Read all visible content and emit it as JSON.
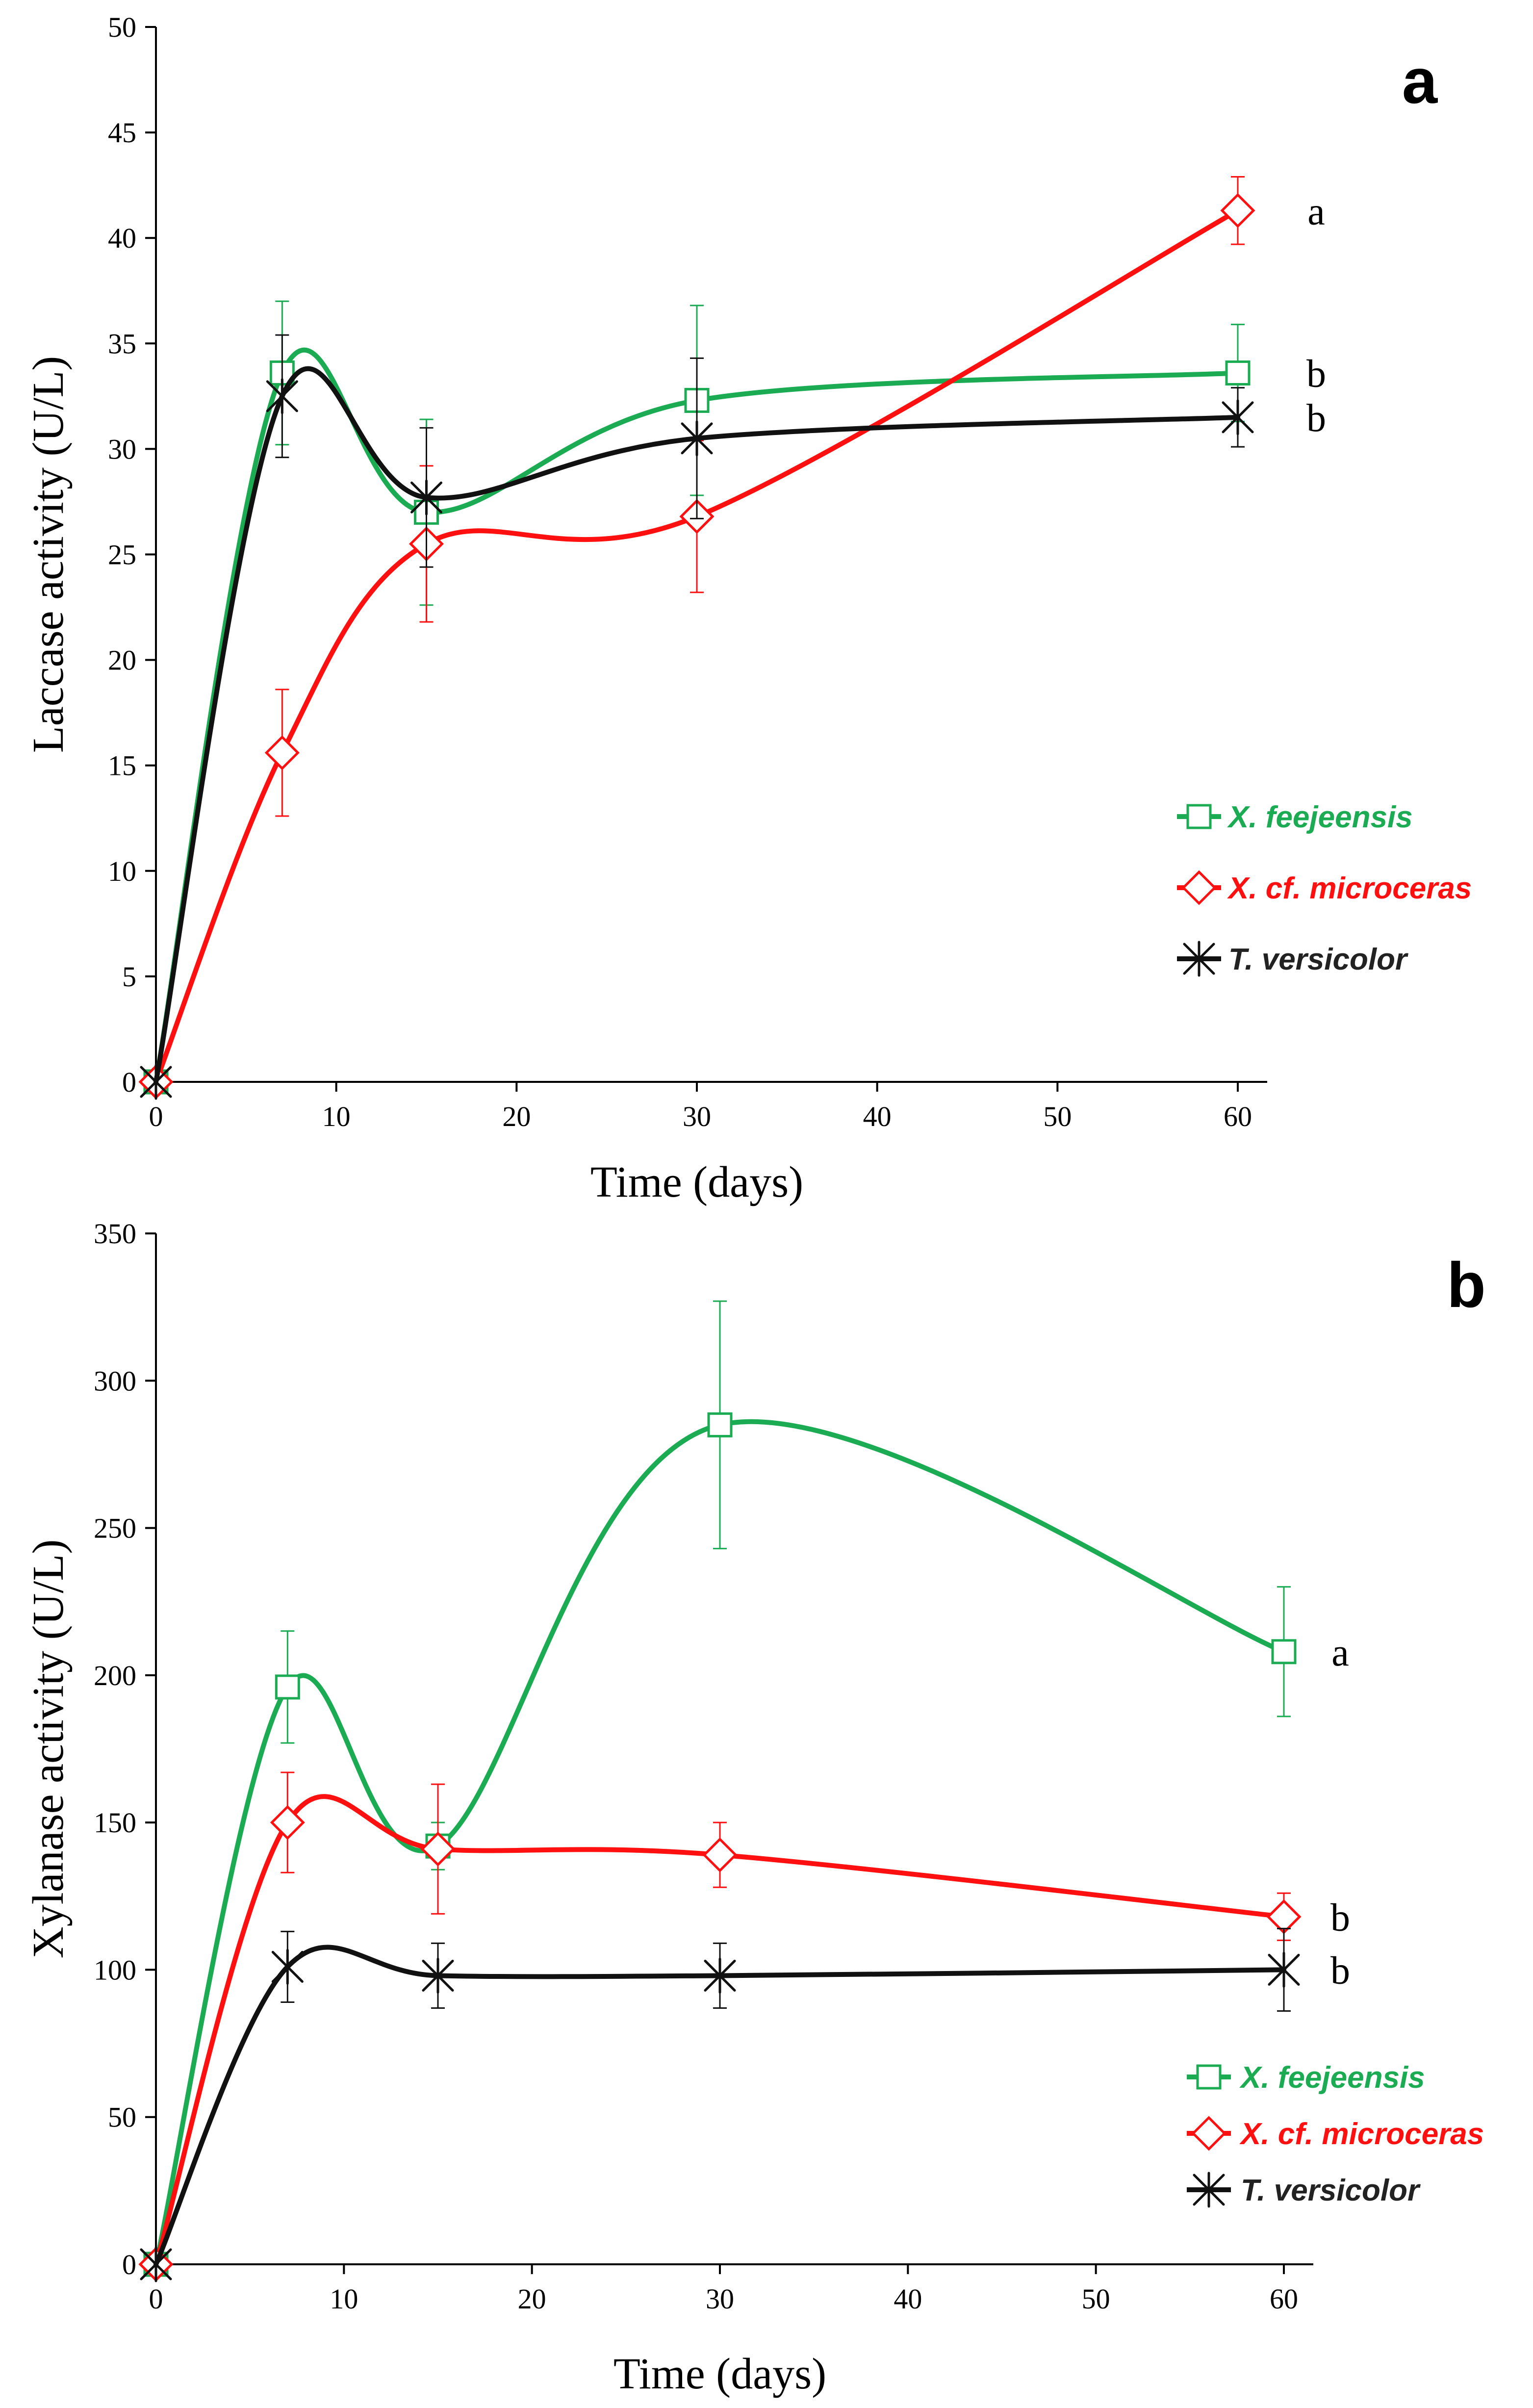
{
  "chart_data": [
    {
      "type": "line",
      "panel_label": "a",
      "xlabel": "Time (days)",
      "ylabel": "Laccase activity (U/L)",
      "x_ticks": [
        "0",
        "10",
        "20",
        "30",
        "40",
        "50",
        "60"
      ],
      "y_ticks": [
        "0",
        "5",
        "10",
        "15",
        "20",
        "25",
        "30",
        "35",
        "40",
        "45",
        "50"
      ],
      "xlim": [
        0,
        60
      ],
      "ylim": [
        0,
        50
      ],
      "grid": false,
      "legend_position": "middle-right",
      "x": [
        0,
        7,
        15,
        30,
        60
      ],
      "series": [
        {
          "name": "X. feejeensis",
          "color": "#1aab53",
          "marker": "square",
          "values": [
            0,
            33.6,
            27.0,
            32.3,
            33.6
          ],
          "errors": [
            0,
            3.4,
            4.4,
            4.5,
            2.3
          ],
          "significance": "b"
        },
        {
          "name": "X. cf. microceras",
          "color": "#ff1010",
          "marker": "diamond",
          "values": [
            0,
            15.6,
            25.5,
            26.8,
            41.3
          ],
          "errors": [
            0,
            3.0,
            3.7,
            3.6,
            1.6
          ],
          "significance": "a"
        },
        {
          "name": "T. versicolor",
          "color": "#111111",
          "marker": "asterisk",
          "values": [
            0,
            32.5,
            27.7,
            30.5,
            31.5
          ],
          "errors": [
            0,
            2.9,
            3.3,
            3.8,
            1.4
          ],
          "significance": "b"
        }
      ]
    },
    {
      "type": "line",
      "panel_label": "b",
      "xlabel": "Time (days)",
      "ylabel": "Xylanase activity (U/L)",
      "x_ticks": [
        "0",
        "10",
        "20",
        "30",
        "40",
        "50",
        "60"
      ],
      "y_ticks": [
        "0",
        "50",
        "100",
        "150",
        "200",
        "250",
        "300",
        "350"
      ],
      "xlim": [
        0,
        60
      ],
      "ylim": [
        0,
        350
      ],
      "grid": false,
      "legend_position": "bottom-right",
      "x": [
        0,
        7,
        15,
        30,
        60
      ],
      "series": [
        {
          "name": "X. feejeensis",
          "color": "#1aab53",
          "marker": "square",
          "values": [
            0,
            196,
            142,
            285,
            208
          ],
          "errors": [
            0,
            19,
            8,
            42,
            22
          ],
          "significance": "a"
        },
        {
          "name": "X. cf. microceras",
          "color": "#ff1010",
          "marker": "diamond",
          "values": [
            0,
            150,
            141,
            139,
            118
          ],
          "errors": [
            0,
            17,
            22,
            11,
            8
          ],
          "significance": "b"
        },
        {
          "name": "T. versicolor",
          "color": "#111111",
          "marker": "asterisk",
          "values": [
            0,
            101,
            98,
            98,
            100
          ],
          "errors": [
            0,
            12,
            11,
            11,
            14
          ],
          "significance": "b"
        }
      ]
    }
  ]
}
